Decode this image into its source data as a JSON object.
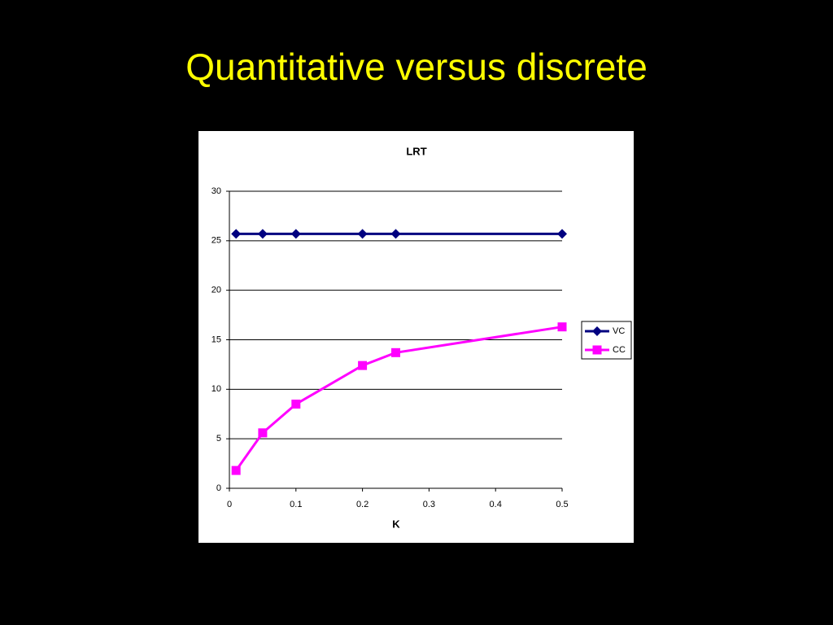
{
  "slide_title": "Quantitative versus discrete",
  "chart_data": {
    "type": "line",
    "title": "LRT",
    "x_label": "K",
    "x": [
      0.01,
      0.05,
      0.1,
      0.2,
      0.25,
      0.5
    ],
    "series": [
      {
        "name": "VC",
        "color": "#000080",
        "marker": "diamond",
        "values": [
          25.7,
          25.7,
          25.7,
          25.7,
          25.7,
          25.7
        ]
      },
      {
        "name": "CC",
        "color": "#ff00ff",
        "marker": "square",
        "values": [
          1.8,
          5.6,
          8.5,
          12.4,
          13.7,
          16.3
        ]
      }
    ],
    "xlim": [
      0,
      0.5
    ],
    "xticks": [
      0,
      0.1,
      0.2,
      0.3,
      0.4,
      0.5
    ],
    "ylim": [
      0,
      30
    ],
    "yticks": [
      0,
      5,
      10,
      15,
      20,
      25,
      30
    ],
    "grid": true,
    "legend": "right"
  }
}
